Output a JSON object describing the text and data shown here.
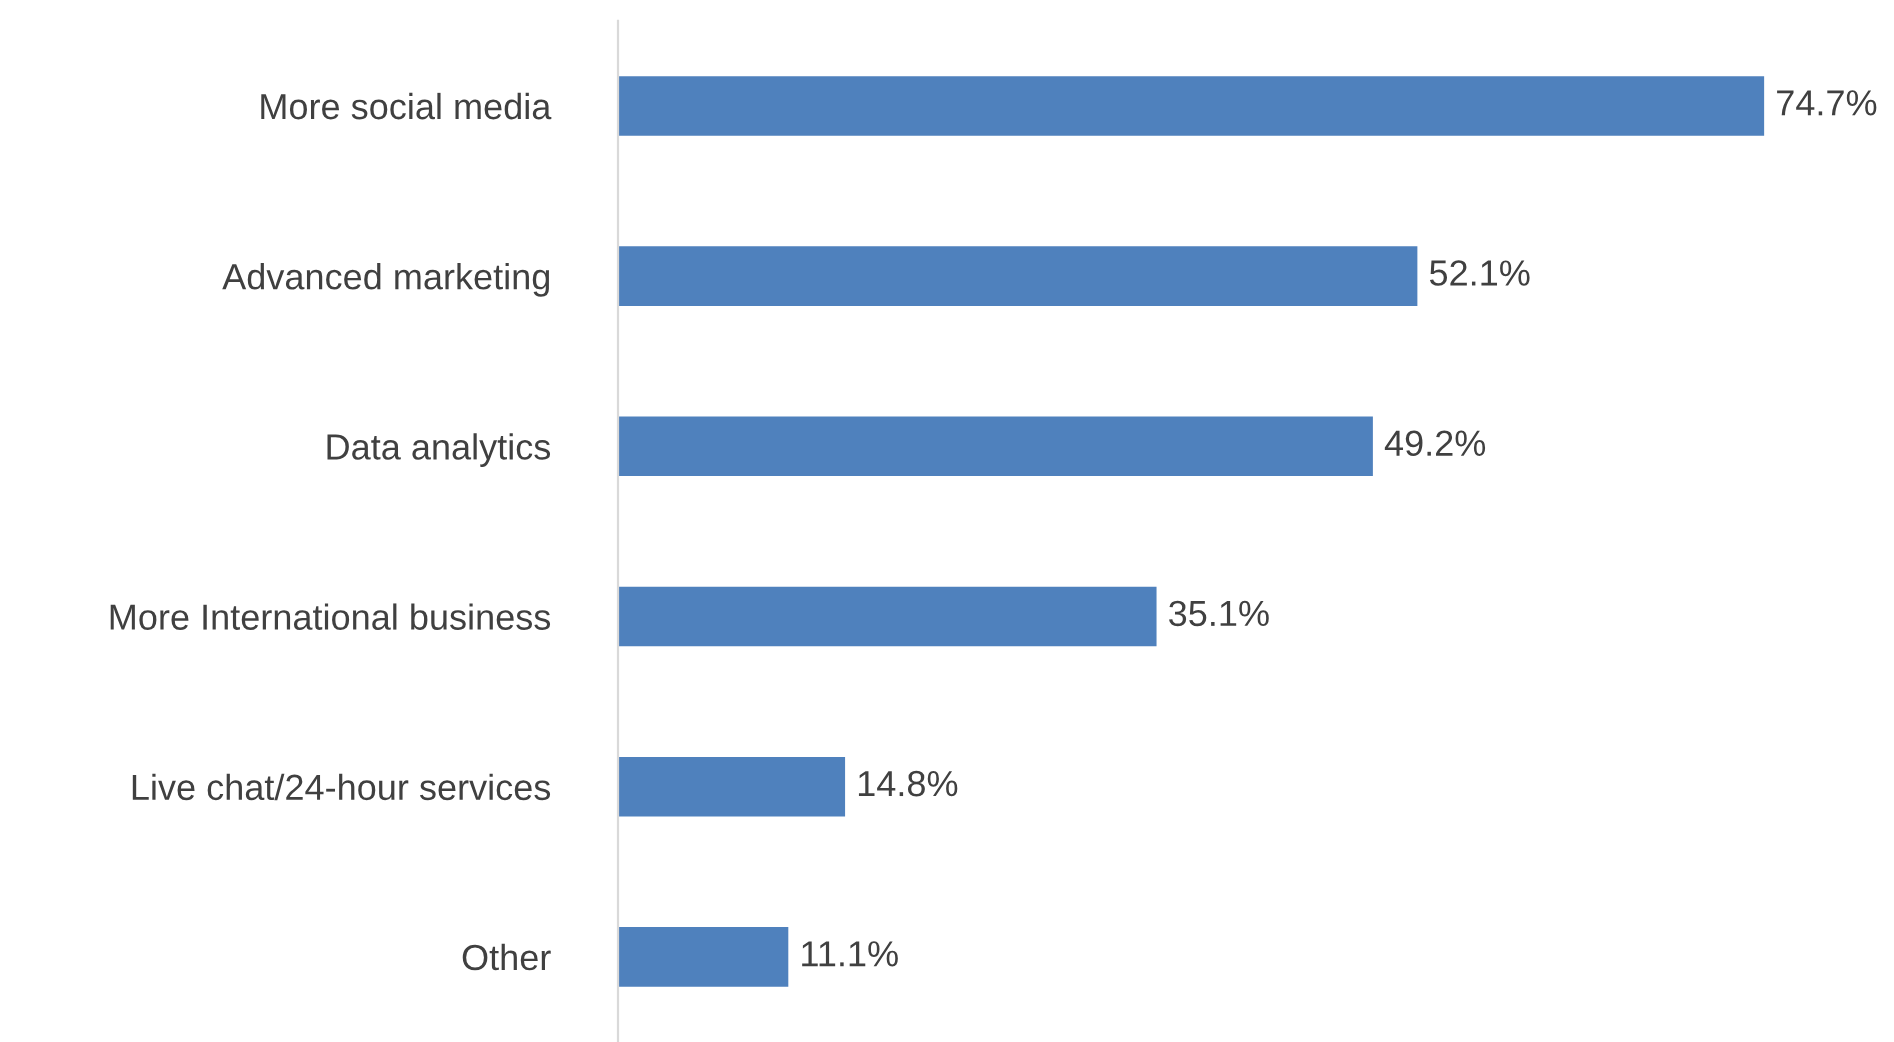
{
  "chart_data": {
    "type": "bar",
    "orientation": "horizontal",
    "categories": [
      "More social media",
      "Advanced marketing",
      "Data analytics",
      "More International business",
      "Live chat/24-hour services",
      "Other"
    ],
    "values": [
      74.7,
      52.1,
      49.2,
      35.1,
      14.8,
      11.1
    ],
    "value_labels": [
      "74.7%",
      "52.1%",
      "49.2%",
      "35.1%",
      "14.8%",
      "11.1%"
    ],
    "color": "#4f81bd",
    "grid": false,
    "legend": false
  }
}
